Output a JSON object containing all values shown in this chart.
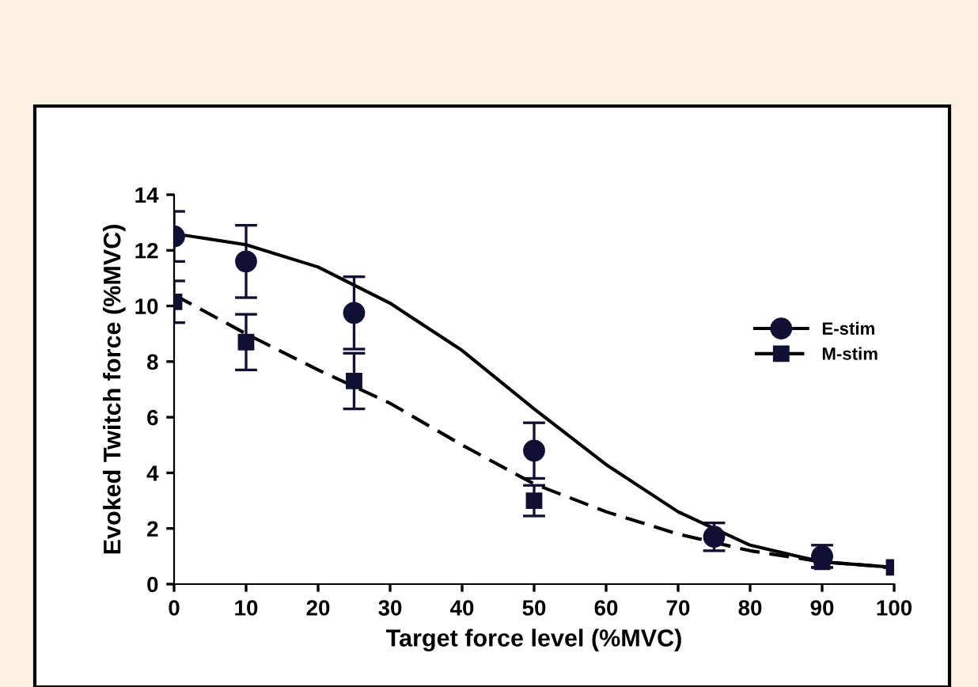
{
  "chart_data": {
    "type": "scatter",
    "xlabel": "Target force level (%MVC)",
    "ylabel": "Evoked Twitch force (%MVC)",
    "xlim": [
      0,
      100
    ],
    "ylim": [
      0,
      14
    ],
    "xticks": [
      0,
      10,
      20,
      30,
      40,
      50,
      60,
      70,
      80,
      90,
      100
    ],
    "yticks": [
      0,
      2,
      4,
      6,
      8,
      10,
      12,
      14
    ],
    "grid": false,
    "legend": "right",
    "series": [
      {
        "name": "E-stim",
        "marker": "circle",
        "color": "#101035",
        "x": [
          0,
          10,
          25,
          50,
          75,
          90
        ],
        "values": [
          12.5,
          11.6,
          9.75,
          4.8,
          1.7,
          1.0
        ],
        "errors": [
          0.9,
          1.3,
          1.3,
          1.0,
          0.5,
          0.4
        ]
      },
      {
        "name": "M-stim",
        "marker": "square",
        "color": "#101035",
        "x": [
          0,
          10,
          25,
          50,
          90,
          100
        ],
        "values": [
          10.15,
          8.7,
          7.3,
          3.0,
          0.8,
          0.6
        ],
        "errors": [
          0.75,
          1.0,
          1.0,
          0.55,
          0.2,
          null
        ]
      },
      {
        "type": "line",
        "line_style": "solid",
        "marker": "none",
        "color": "#000000",
        "x": [
          0,
          10,
          20,
          30,
          40,
          50,
          60,
          70,
          80,
          90,
          100
        ],
        "values": [
          12.6,
          12.2,
          11.4,
          10.1,
          8.4,
          6.3,
          4.3,
          2.6,
          1.4,
          0.8,
          0.6
        ]
      },
      {
        "type": "line",
        "line_style": "dashed",
        "marker": "none",
        "color": "#000000",
        "x": [
          0,
          10,
          20,
          30,
          40,
          50,
          60,
          70,
          80,
          90,
          100
        ],
        "values": [
          10.4,
          9.0,
          7.7,
          6.5,
          5.0,
          3.6,
          2.6,
          1.8,
          1.2,
          0.8,
          0.6
        ]
      }
    ]
  }
}
